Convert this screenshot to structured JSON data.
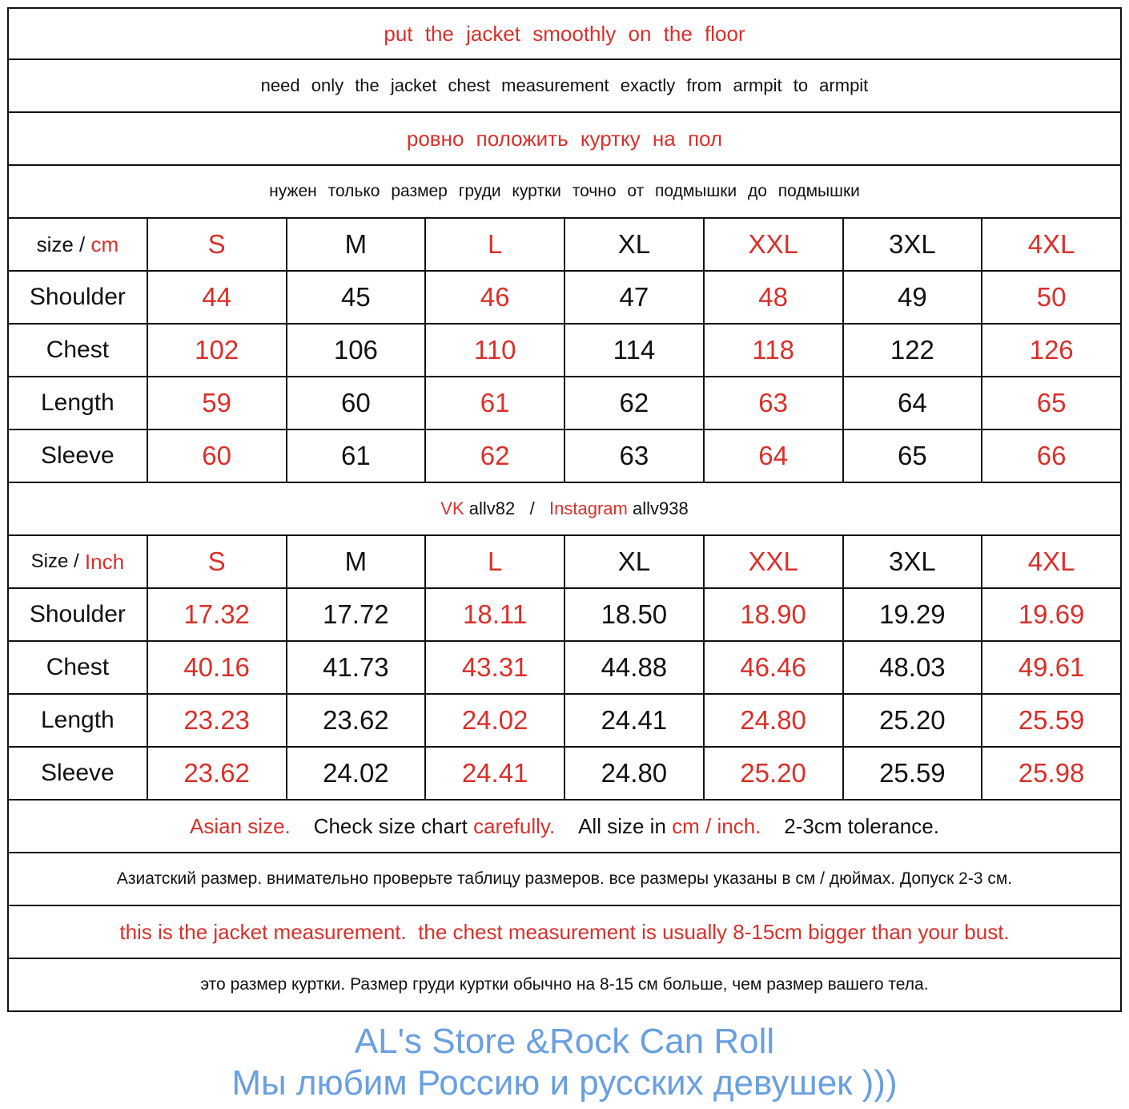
{
  "instructions": {
    "line1": "put the jacket smoothly on the floor",
    "line2": "need only the jacket chest measurement exactly from armpit to armpit",
    "line3": "ровно положить куртку на пол",
    "line4": "нужен только размер груди куртки точно от подмышки до подмышки"
  },
  "cm_table": {
    "header_label": "size / ",
    "header_unit": "cm",
    "sizes": [
      "S",
      "M",
      "L",
      "XL",
      "XXL",
      "3XL",
      "4XL"
    ],
    "rows": [
      {
        "label": "Shoulder",
        "values": [
          "44",
          "45",
          "46",
          "47",
          "48",
          "49",
          "50"
        ]
      },
      {
        "label": "Chest",
        "values": [
          "102",
          "106",
          "110",
          "114",
          "118",
          "122",
          "126"
        ]
      },
      {
        "label": "Length",
        "values": [
          "59",
          "60",
          "61",
          "62",
          "63",
          "64",
          "65"
        ]
      },
      {
        "label": "Sleeve",
        "values": [
          "60",
          "61",
          "62",
          "63",
          "64",
          "65",
          "66"
        ]
      }
    ]
  },
  "social": {
    "vk_label": "VK",
    "vk_id": "allv82",
    "separator": "/",
    "instagram_label": "Instagram",
    "instagram_id": "allv938"
  },
  "inch_table": {
    "header_label": "Size / ",
    "header_unit": "Inch",
    "sizes": [
      "S",
      "M",
      "L",
      "XL",
      "XXL",
      "3XL",
      "4XL"
    ],
    "rows": [
      {
        "label": "Shoulder",
        "values": [
          "17.32",
          "17.72",
          "18.11",
          "18.50",
          "18.90",
          "19.29",
          "19.69"
        ]
      },
      {
        "label": "Chest",
        "values": [
          "40.16",
          "41.73",
          "43.31",
          "44.88",
          "46.46",
          "48.03",
          "49.61"
        ]
      },
      {
        "label": "Length",
        "values": [
          "23.23",
          "23.62",
          "24.02",
          "24.41",
          "24.80",
          "25.20",
          "25.59"
        ]
      },
      {
        "label": "Sleeve",
        "values": [
          "23.62",
          "24.02",
          "24.41",
          "24.80",
          "25.20",
          "25.59",
          "25.98"
        ]
      }
    ]
  },
  "notes": {
    "en_parts": [
      "Asian size.",
      "Check size chart ",
      "carefully.",
      "All size in ",
      "cm / inch.",
      "2-3cm tolerance."
    ],
    "ru": "Азиатский размер. внимательно проверьте таблицу размеров. все размеры указаны в см / дюймах. Допуск 2-3 см.",
    "en_jacket": "this is the jacket measurement.  the chest measurement is usually 8-15cm bigger than your bust.",
    "ru_jacket": "это размер куртки. Размер груди куртки обычно на 8-15 см больше, чем размер вашего тела."
  },
  "watermarks": {
    "store": "AL's Store &Rock Can Roll",
    "slogan": "Мы любим Россию и русских девушек )))"
  },
  "colors": {
    "accent_red": "#d9302a",
    "watermark_blue": "#6a9fe0",
    "border": "#111111"
  }
}
